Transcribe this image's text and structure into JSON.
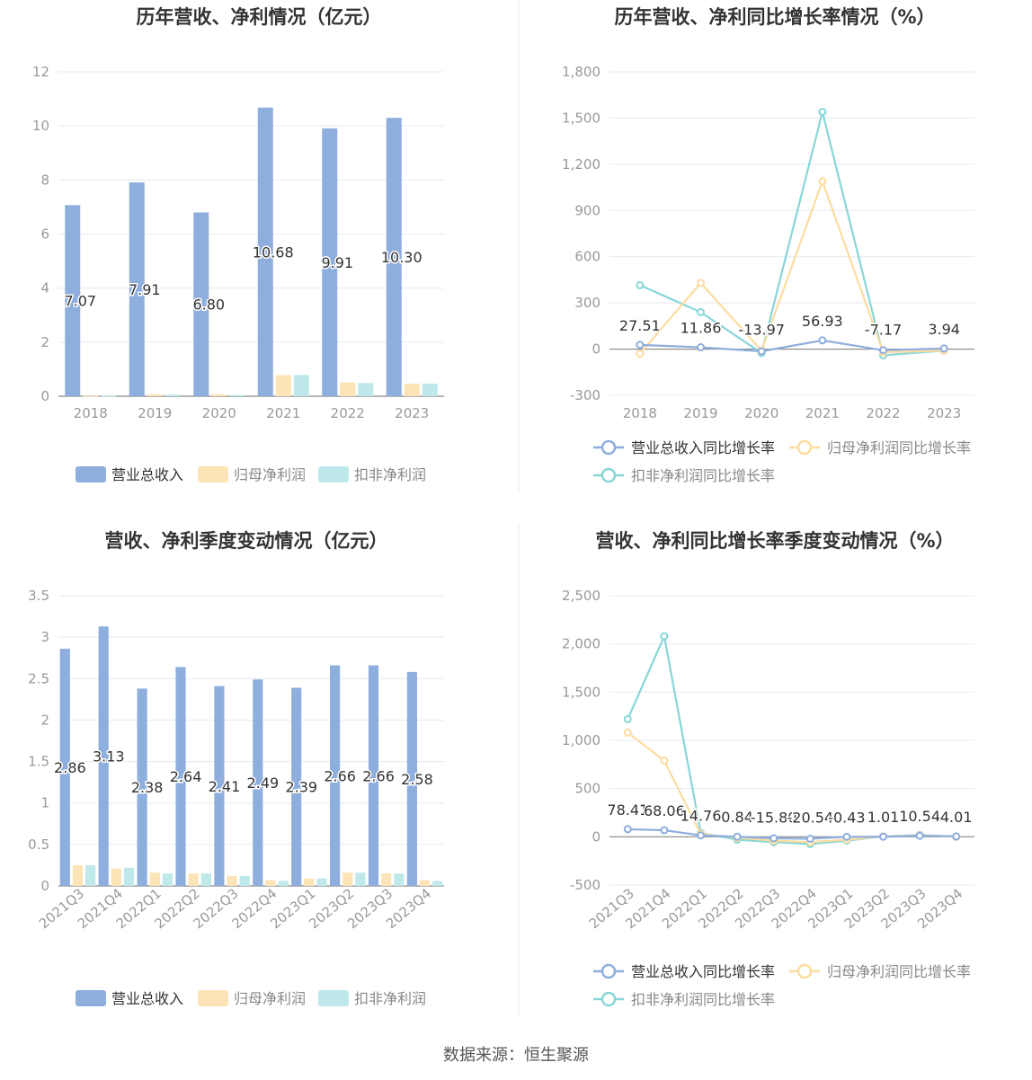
{
  "source": "数据来源：恒生聚源",
  "colors": {
    "revenue": "#8eaedd",
    "net_profit": "#fde4b6",
    "deducted_profit": "#bfe8ea",
    "line_revenue": "#8eaedd",
    "line_net": "#fddca0",
    "line_deducted": "#88d6d8",
    "axis": "#999999",
    "grid": "#e6e9f2",
    "title": "#333333"
  },
  "chart_data": [
    {
      "id": "annual-amount",
      "type": "bar",
      "title": "历年营收、净利情况（亿元）",
      "categories": [
        "2018",
        "2019",
        "2020",
        "2021",
        "2022",
        "2023"
      ],
      "ylim": [
        0,
        12
      ],
      "yticks": [
        "0",
        "2",
        "4",
        "6",
        "8",
        "10",
        "12"
      ],
      "series": [
        {
          "name": "营业总收入",
          "values": [
            7.07,
            7.91,
            6.8,
            10.68,
            9.91,
            10.3
          ],
          "labels": [
            "7.07",
            "7.91",
            "6.80",
            "10.68",
            "9.91",
            "10.30"
          ]
        },
        {
          "name": "归母净利润",
          "values": [
            0.01,
            0.07,
            0.07,
            0.78,
            0.51,
            0.46
          ]
        },
        {
          "name": "扣非净利润",
          "values": [
            0.02,
            0.06,
            0.05,
            0.79,
            0.49,
            0.47
          ]
        }
      ],
      "legend": "bottom"
    },
    {
      "id": "annual-growth",
      "type": "line",
      "title": "历年营收、净利同比增长率情况（%）",
      "categories": [
        "2018",
        "2019",
        "2020",
        "2021",
        "2022",
        "2023"
      ],
      "ylim": [
        -300,
        1800
      ],
      "yticks": [
        "-300",
        "0",
        "300",
        "600",
        "900",
        "1,200",
        "1,500",
        "1,800"
      ],
      "series": [
        {
          "name": "营业总收入同比增长率",
          "values": [
            27.51,
            11.86,
            -13.97,
            56.93,
            -7.17,
            3.94
          ],
          "labels": [
            "27.51",
            "11.86",
            "-13.97",
            "56.93",
            "-7.17",
            "3.94"
          ]
        },
        {
          "name": "归母净利润同比增长率",
          "values": [
            -30,
            430,
            -10,
            1090,
            -20,
            -10
          ]
        },
        {
          "name": "扣非净利润同比增长率",
          "values": [
            415,
            240,
            -25,
            1540,
            -40,
            -10
          ]
        }
      ],
      "legend": "bottom"
    },
    {
      "id": "quarterly-amount",
      "type": "bar",
      "title": "营收、净利季度变动情况（亿元）",
      "categories": [
        "2021Q3",
        "2021Q4",
        "2022Q1",
        "2022Q2",
        "2022Q3",
        "2022Q4",
        "2023Q1",
        "2023Q2",
        "2023Q3",
        "2023Q4"
      ],
      "ylim": [
        0,
        3.5
      ],
      "yticks": [
        "0",
        "0.5",
        "1",
        "1.5",
        "2",
        "2.5",
        "3",
        "3.5"
      ],
      "series": [
        {
          "name": "营业总收入",
          "values": [
            2.86,
            3.13,
            2.38,
            2.64,
            2.41,
            2.49,
            2.39,
            2.66,
            2.66,
            2.58
          ],
          "labels": [
            "2.86",
            "3.13",
            "2.38",
            "2.64",
            "2.41",
            "2.49",
            "2.39",
            "2.66",
            "2.66",
            "2.58"
          ]
        },
        {
          "name": "归母净利润",
          "values": [
            0.25,
            0.21,
            0.16,
            0.15,
            0.12,
            0.07,
            0.09,
            0.16,
            0.15,
            0.07
          ]
        },
        {
          "name": "扣非净利润",
          "values": [
            0.25,
            0.22,
            0.15,
            0.15,
            0.12,
            0.06,
            0.09,
            0.16,
            0.15,
            0.06
          ]
        }
      ],
      "legend": "bottom"
    },
    {
      "id": "quarterly-growth",
      "type": "line",
      "title": "营收、净利同比增长率季度变动情况（%）",
      "categories": [
        "2021Q3",
        "2021Q4",
        "2022Q1",
        "2022Q2",
        "2022Q3",
        "2022Q4",
        "2023Q1",
        "2023Q2",
        "2023Q3",
        "2023Q4"
      ],
      "ylim": [
        -500,
        2500
      ],
      "yticks": [
        "-500",
        "0",
        "500",
        "1,000",
        "1,500",
        "2,000",
        "2,500"
      ],
      "series": [
        {
          "name": "营业总收入同比增长率",
          "values": [
            78.41,
            68.06,
            14.76,
            0.84,
            -15.8,
            -20.54,
            -0.43,
            1.01,
            10.54,
            4.01
          ],
          "labels": [
            "78.41",
            "68.06",
            "14.76",
            "0.84",
            "-15.80",
            "-20.54",
            "-0.43",
            "1.01",
            "10.54",
            "4.01"
          ]
        },
        {
          "name": "归母净利润同比增长率",
          "values": [
            1080,
            790,
            30,
            -10,
            -40,
            -55,
            -30,
            5,
            15,
            0
          ]
        },
        {
          "name": "扣非净利润同比增长率",
          "values": [
            1220,
            2080,
            40,
            -30,
            -55,
            -75,
            -40,
            5,
            20,
            0
          ]
        }
      ],
      "legend": "bottom"
    }
  ]
}
